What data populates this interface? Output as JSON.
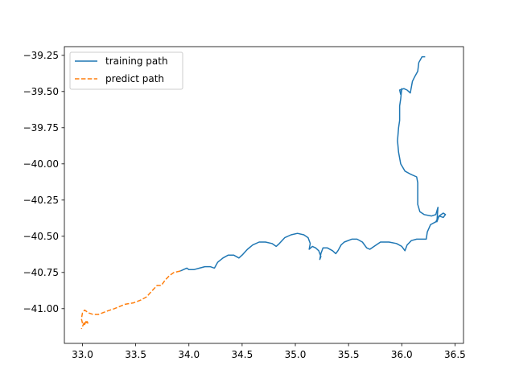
{
  "chart_data": {
    "type": "line",
    "xlim": [
      32.83,
      36.58
    ],
    "ylim": [
      -41.24,
      -39.19
    ],
    "xticks": [
      {
        "value": 33.0,
        "label": "33.0"
      },
      {
        "value": 33.5,
        "label": "33.5"
      },
      {
        "value": 34.0,
        "label": "34.0"
      },
      {
        "value": 34.5,
        "label": "34.5"
      },
      {
        "value": 35.0,
        "label": "35.0"
      },
      {
        "value": 35.5,
        "label": "35.5"
      },
      {
        "value": 36.0,
        "label": "36.0"
      },
      {
        "value": 36.5,
        "label": "36.5"
      }
    ],
    "yticks": [
      {
        "value": -39.25,
        "label": "−39.25"
      },
      {
        "value": -39.5,
        "label": "−39.50"
      },
      {
        "value": -39.75,
        "label": "−39.75"
      },
      {
        "value": -40.0,
        "label": "−40.00"
      },
      {
        "value": -40.25,
        "label": "−40.25"
      },
      {
        "value": -40.5,
        "label": "−40.50"
      },
      {
        "value": -40.75,
        "label": "−40.75"
      },
      {
        "value": -41.0,
        "label": "−41.00"
      }
    ],
    "grid": false,
    "legend_position": "top-left",
    "series": [
      {
        "name": "training path",
        "color": "#1f77b4",
        "style": "solid",
        "points": [
          [
            36.22,
            -39.26
          ],
          [
            36.19,
            -39.26
          ],
          [
            36.16,
            -39.3
          ],
          [
            36.15,
            -39.36
          ],
          [
            36.12,
            -39.4
          ],
          [
            36.1,
            -39.43
          ],
          [
            36.08,
            -39.51
          ],
          [
            36.05,
            -39.49
          ],
          [
            36.02,
            -39.48
          ],
          [
            35.98,
            -39.49
          ],
          [
            35.99,
            -39.52
          ],
          [
            36.0,
            -39.48
          ],
          [
            35.99,
            -39.55
          ],
          [
            35.98,
            -39.6
          ],
          [
            35.98,
            -39.7
          ],
          [
            35.97,
            -39.75
          ],
          [
            35.96,
            -39.84
          ],
          [
            35.97,
            -39.92
          ],
          [
            35.99,
            -40.0
          ],
          [
            36.03,
            -40.05
          ],
          [
            36.08,
            -40.07
          ],
          [
            36.14,
            -40.09
          ],
          [
            36.15,
            -40.13
          ],
          [
            36.15,
            -40.28
          ],
          [
            36.17,
            -40.33
          ],
          [
            36.21,
            -40.35
          ],
          [
            36.28,
            -40.36
          ],
          [
            36.32,
            -40.35
          ],
          [
            36.34,
            -40.3
          ],
          [
            36.33,
            -40.4
          ],
          [
            36.35,
            -40.36
          ],
          [
            36.39,
            -40.34
          ],
          [
            36.41,
            -40.35
          ],
          [
            36.39,
            -40.37
          ],
          [
            36.35,
            -40.36
          ],
          [
            36.32,
            -40.4
          ],
          [
            36.27,
            -40.42
          ],
          [
            36.24,
            -40.47
          ],
          [
            36.23,
            -40.52
          ],
          [
            36.2,
            -40.52
          ],
          [
            36.14,
            -40.52
          ],
          [
            36.09,
            -40.53
          ],
          [
            36.05,
            -40.56
          ],
          [
            36.03,
            -40.6
          ],
          [
            36.0,
            -40.57
          ],
          [
            35.95,
            -40.55
          ],
          [
            35.88,
            -40.54
          ],
          [
            35.8,
            -40.54
          ],
          [
            35.74,
            -40.57
          ],
          [
            35.7,
            -40.59
          ],
          [
            35.67,
            -40.58
          ],
          [
            35.63,
            -40.54
          ],
          [
            35.58,
            -40.52
          ],
          [
            35.53,
            -40.52
          ],
          [
            35.46,
            -40.54
          ],
          [
            35.43,
            -40.56
          ],
          [
            35.4,
            -40.6
          ],
          [
            35.38,
            -40.62
          ],
          [
            35.35,
            -40.6
          ],
          [
            35.3,
            -40.58
          ],
          [
            35.26,
            -40.58
          ],
          [
            35.24,
            -40.62
          ],
          [
            35.23,
            -40.66
          ],
          [
            35.24,
            -40.64
          ],
          [
            35.22,
            -40.6
          ],
          [
            35.19,
            -40.58
          ],
          [
            35.16,
            -40.57
          ],
          [
            35.13,
            -40.59
          ],
          [
            35.14,
            -40.55
          ],
          [
            35.12,
            -40.51
          ],
          [
            35.08,
            -40.49
          ],
          [
            35.02,
            -40.48
          ],
          [
            34.96,
            -40.49
          ],
          [
            34.9,
            -40.51
          ],
          [
            34.85,
            -40.55
          ],
          [
            34.82,
            -40.57
          ],
          [
            34.78,
            -40.55
          ],
          [
            34.72,
            -40.54
          ],
          [
            34.66,
            -40.54
          ],
          [
            34.6,
            -40.56
          ],
          [
            34.55,
            -40.59
          ],
          [
            34.5,
            -40.63
          ],
          [
            34.47,
            -40.65
          ],
          [
            34.42,
            -40.63
          ],
          [
            34.37,
            -40.63
          ],
          [
            34.32,
            -40.65
          ],
          [
            34.27,
            -40.68
          ],
          [
            34.24,
            -40.72
          ],
          [
            34.2,
            -40.71
          ],
          [
            34.15,
            -40.71
          ],
          [
            34.1,
            -40.72
          ],
          [
            34.05,
            -40.73
          ],
          [
            34.0,
            -40.73
          ],
          [
            33.98,
            -40.72
          ],
          [
            33.95,
            -40.73
          ],
          [
            33.92,
            -40.74
          ]
        ]
      },
      {
        "name": "predict path",
        "color": "#ff7f0e",
        "style": "dashed",
        "points": [
          [
            33.92,
            -40.74
          ],
          [
            33.86,
            -40.75
          ],
          [
            33.82,
            -40.77
          ],
          [
            33.78,
            -40.8
          ],
          [
            33.74,
            -40.84
          ],
          [
            33.7,
            -40.84
          ],
          [
            33.65,
            -40.88
          ],
          [
            33.6,
            -40.92
          ],
          [
            33.55,
            -40.94
          ],
          [
            33.48,
            -40.96
          ],
          [
            33.4,
            -40.97
          ],
          [
            33.3,
            -41.0
          ],
          [
            33.22,
            -41.02
          ],
          [
            33.15,
            -41.04
          ],
          [
            33.1,
            -41.04
          ],
          [
            33.06,
            -41.03
          ],
          [
            33.02,
            -41.01
          ],
          [
            33.0,
            -41.03
          ],
          [
            32.99,
            -41.07
          ],
          [
            33.0,
            -41.1
          ],
          [
            33.02,
            -41.11
          ],
          [
            33.04,
            -41.08
          ],
          [
            33.05,
            -41.1
          ],
          [
            33.02,
            -41.09
          ],
          [
            32.99,
            -41.14
          ]
        ]
      }
    ]
  }
}
